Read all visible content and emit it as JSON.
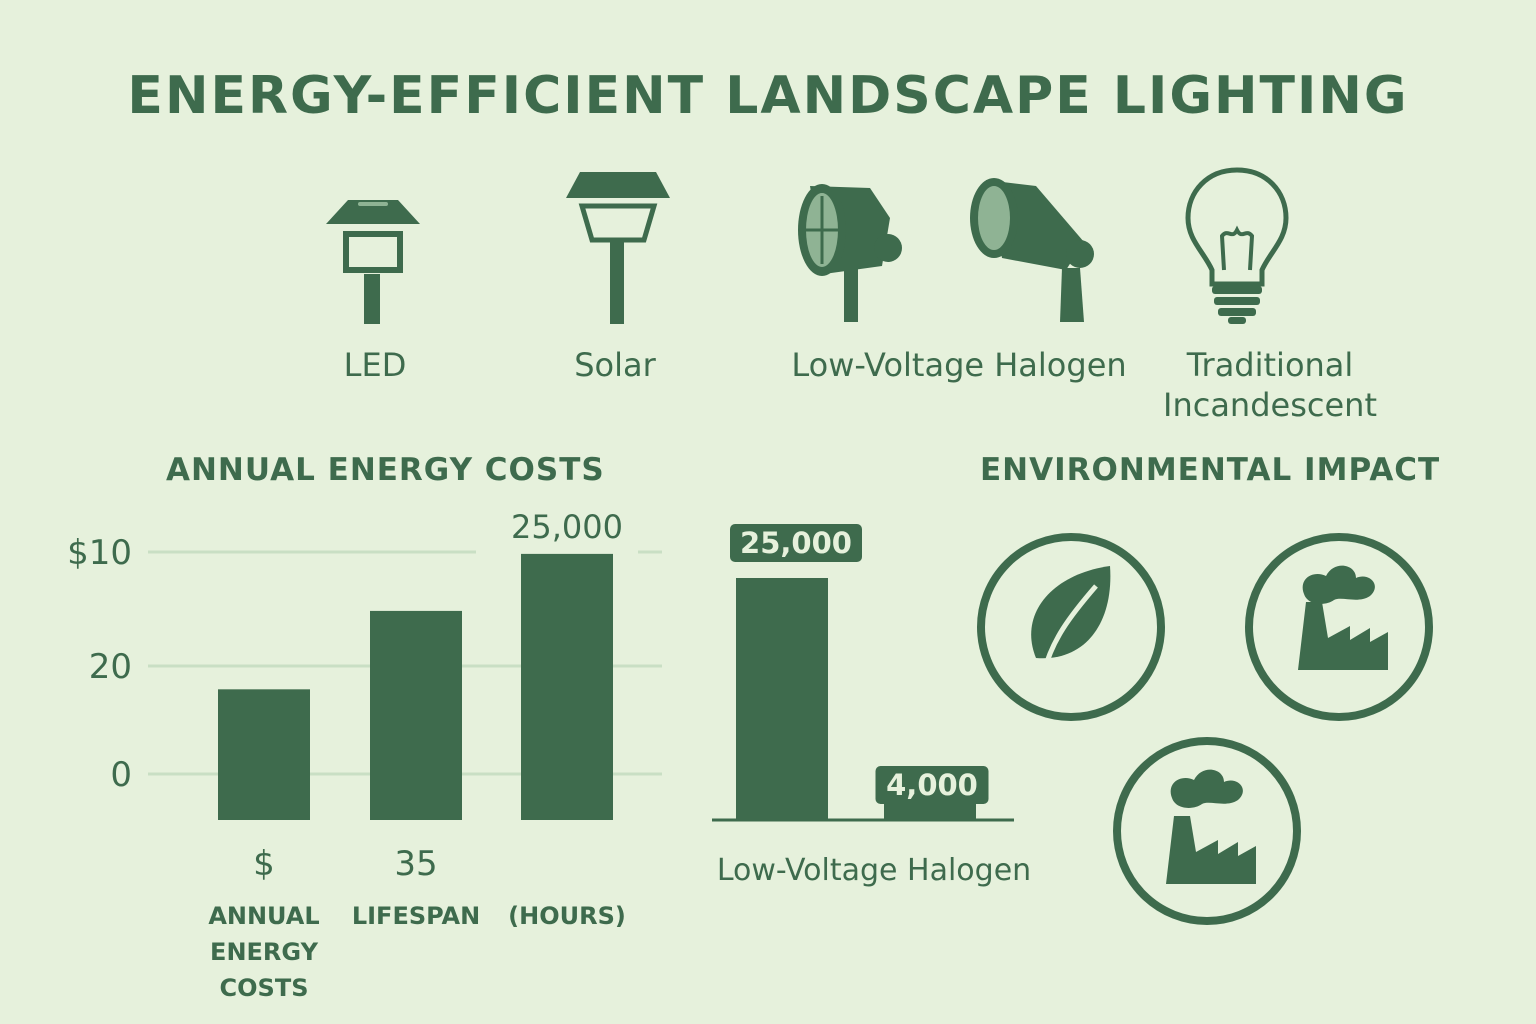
{
  "title": "ENERGY-EFFICIENT LANDSCAPE LIGHTING",
  "lamps": [
    {
      "label": "LED",
      "icon": "led-path-light-icon"
    },
    {
      "label": "Solar",
      "icon": "solar-lantern-icon"
    },
    {
      "label": "Low-Voltage Halogen",
      "icon": "halogen-spotlight-icon"
    },
    {
      "label": "Traditional Incandescent",
      "icon": "incandescent-bulb-icon"
    }
  ],
  "annual_title": "ANNUAL ENERGY COSTS",
  "env_title": "ENVIRONMENTAL IMPACT",
  "env_icons": [
    "leaf-circle-icon",
    "factory-circle-icon",
    "factory-circle-icon"
  ],
  "colors": {
    "background": "#e6f1dc",
    "primary": "#3e6b4d",
    "grid": "#c9dfc4"
  },
  "chart_data": [
    {
      "type": "bar",
      "title": "ANNUAL ENERGY COSTS",
      "y_ticks": [
        "$10",
        "20",
        "0"
      ],
      "grid": true,
      "bar_values": [
        0.55,
        0.88,
        1.12
      ],
      "bar_value_note": "values relative to gridline spacing, read from positions",
      "data_labels": [
        "",
        "",
        "25,000"
      ],
      "category_values": [
        "$",
        "35",
        ""
      ],
      "category_labels": [
        "ANNUAL\nENERGY\nCOSTS",
        "LIFESPAN",
        "(HOURS)"
      ]
    },
    {
      "type": "bar",
      "categories": [
        "",
        ""
      ],
      "values": [
        25000,
        4000
      ],
      "data_labels": [
        "25,000",
        "4,000"
      ],
      "xlabel": "Low-Voltage Halogen",
      "ylim": [
        0,
        25000
      ]
    }
  ]
}
